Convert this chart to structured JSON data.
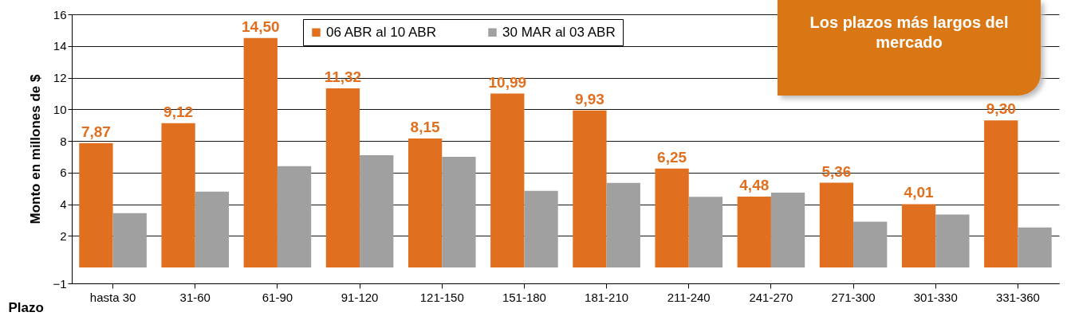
{
  "chart_data": {
    "type": "bar",
    "xlabel": "Plazo",
    "ylabel": "Monto en  millones de $",
    "annotations": [
      "Los plazos más largos del mercado"
    ],
    "categories": [
      "hasta 30",
      "31-60",
      "61-90",
      "91-120",
      "121-150",
      "151-180",
      "181-210",
      "211-240",
      "241-270",
      "271-300",
      "301-330",
      "331-360"
    ],
    "series": [
      {
        "name": "06 ABR al 10 ABR",
        "color": "#e07020",
        "values": [
          7.87,
          9.12,
          14.5,
          11.32,
          8.15,
          10.99,
          9.93,
          6.25,
          4.48,
          5.36,
          4.01,
          9.3
        ],
        "value_labels": [
          "7,87",
          "9,12",
          "14,50",
          "11,32",
          "8,15",
          "10,99",
          "9,93",
          "6,25",
          "4,48",
          "5,36",
          "4,01",
          "9,30"
        ]
      },
      {
        "name": "30 MAR al 03 ABR",
        "color": "#a0a0a0",
        "values": [
          3.44,
          4.8,
          6.4,
          7.1,
          7.0,
          4.85,
          5.35,
          4.47,
          4.73,
          2.9,
          3.35,
          2.53
        ]
      }
    ],
    "ylim": [
      -1,
      16
    ],
    "yticks": [
      -1,
      2,
      4,
      6,
      8,
      10,
      12,
      14,
      16
    ],
    "grid": "y",
    "legend": "top"
  }
}
